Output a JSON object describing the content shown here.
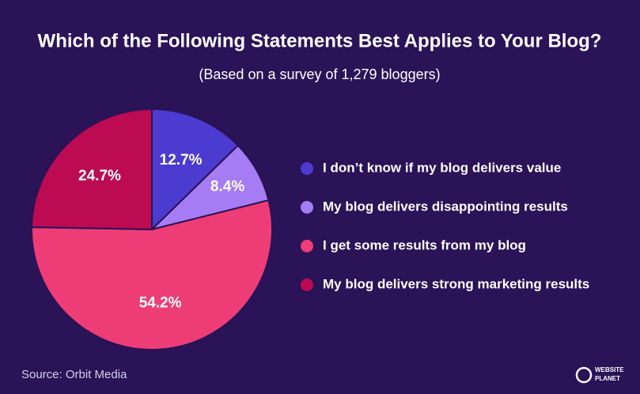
{
  "chart_data": {
    "type": "pie",
    "title": "Which of the Following Statements Best Applies to Your Blog?",
    "subtitle": "(Based on a survey of 1,279 bloggers)",
    "categories": [
      "I don’t know if my blog delivers value",
      "My blog delivers disappointing results",
      "I get some results from my blog",
      "My blog delivers strong marketing results"
    ],
    "values": [
      12.7,
      8.4,
      54.2,
      24.7
    ],
    "value_labels": [
      "12.7%",
      "8.4%",
      "54.2%",
      "24.7%"
    ],
    "colors": [
      "#4b3bd1",
      "#a67cf4",
      "#ee3d76",
      "#bc0a53"
    ],
    "legend": "right",
    "source": "Source: Orbit Media",
    "branding": [
      "WEBSITE",
      "PLANET"
    ]
  }
}
